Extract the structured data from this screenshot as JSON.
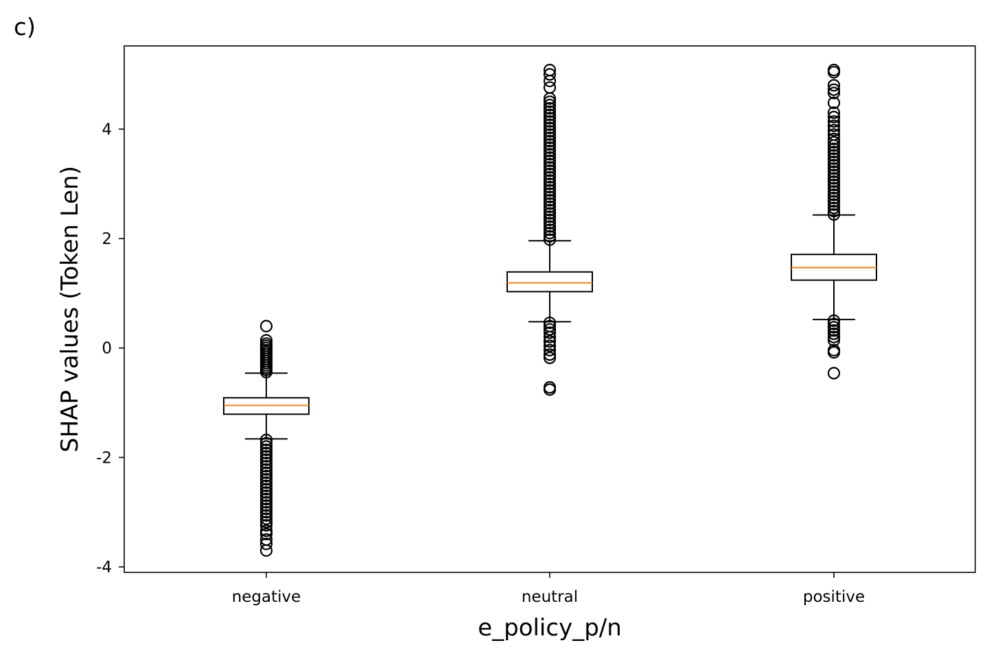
{
  "panel_label": "c)",
  "chart_data": {
    "type": "boxplot",
    "xlabel": "e_policy_p/n",
    "ylabel": "SHAP values (Token Len)",
    "ylim": [
      -4.1,
      5.52
    ],
    "yticks": [
      {
        "value": -4,
        "label": "-4"
      },
      {
        "value": -2,
        "label": "-2"
      },
      {
        "value": 0,
        "label": "0"
      },
      {
        "value": 2,
        "label": "2"
      },
      {
        "value": 4,
        "label": "4"
      }
    ],
    "grid": false,
    "colors": {
      "box": "#000000",
      "median": "#ff7f0e",
      "outlier": "#000000"
    },
    "categories": [
      "negative",
      "neutral",
      "positive"
    ],
    "boxes": [
      {
        "category": "negative",
        "whisker_low": -1.66,
        "q1": -1.21,
        "median": -1.05,
        "q3": -0.91,
        "whisker_high": -0.46,
        "outliers_high": [
          -0.44,
          -0.4,
          -0.36,
          -0.32,
          -0.28,
          -0.24,
          -0.2,
          -0.16,
          -0.12,
          -0.08,
          -0.04,
          0.0,
          0.04,
          0.08,
          0.14,
          0.4
        ],
        "outliers_low": [
          -1.68,
          -1.74,
          -1.8,
          -1.86,
          -1.92,
          -1.98,
          -2.04,
          -2.1,
          -2.16,
          -2.22,
          -2.28,
          -2.34,
          -2.4,
          -2.46,
          -2.52,
          -2.58,
          -2.64,
          -2.7,
          -2.76,
          -2.82,
          -2.88,
          -2.94,
          -3.0,
          -3.06,
          -3.12,
          -3.18,
          -3.24,
          -3.34,
          -3.4,
          -3.5,
          -3.58,
          -3.7
        ]
      },
      {
        "category": "neutral",
        "whisker_low": 0.48,
        "q1": 1.03,
        "median": 1.19,
        "q3": 1.39,
        "whisker_high": 1.96,
        "outliers_high": [
          1.98,
          2.04,
          2.1,
          2.16,
          2.22,
          2.28,
          2.34,
          2.4,
          2.46,
          2.52,
          2.58,
          2.64,
          2.7,
          2.76,
          2.82,
          2.88,
          2.94,
          3.0,
          3.06,
          3.12,
          3.18,
          3.24,
          3.3,
          3.36,
          3.42,
          3.48,
          3.54,
          3.6,
          3.66,
          3.72,
          3.78,
          3.84,
          3.9,
          3.96,
          4.02,
          4.08,
          4.14,
          4.2,
          4.26,
          4.32,
          4.38,
          4.44,
          4.5,
          4.56,
          4.76,
          4.88,
          5.0,
          5.08
        ],
        "outliers_low": [
          0.46,
          0.4,
          0.34,
          0.28,
          0.2,
          0.12,
          0.04,
          -0.04,
          -0.12,
          -0.18,
          -0.72,
          -0.76
        ]
      },
      {
        "category": "positive",
        "whisker_low": 0.52,
        "q1": 1.24,
        "median": 1.47,
        "q3": 1.71,
        "whisker_high": 2.43,
        "outliers_high": [
          2.44,
          2.5,
          2.56,
          2.62,
          2.68,
          2.74,
          2.8,
          2.86,
          2.92,
          2.98,
          3.04,
          3.1,
          3.16,
          3.22,
          3.28,
          3.34,
          3.4,
          3.46,
          3.52,
          3.58,
          3.64,
          3.7,
          3.76,
          3.82,
          3.9,
          3.98,
          4.06,
          4.14,
          4.22,
          4.3,
          4.48,
          4.66,
          4.72,
          4.8,
          5.04,
          5.08
        ],
        "outliers_low": [
          0.5,
          0.44,
          0.38,
          0.32,
          0.26,
          0.2,
          0.14,
          -0.04,
          -0.08,
          -0.46
        ]
      }
    ]
  }
}
